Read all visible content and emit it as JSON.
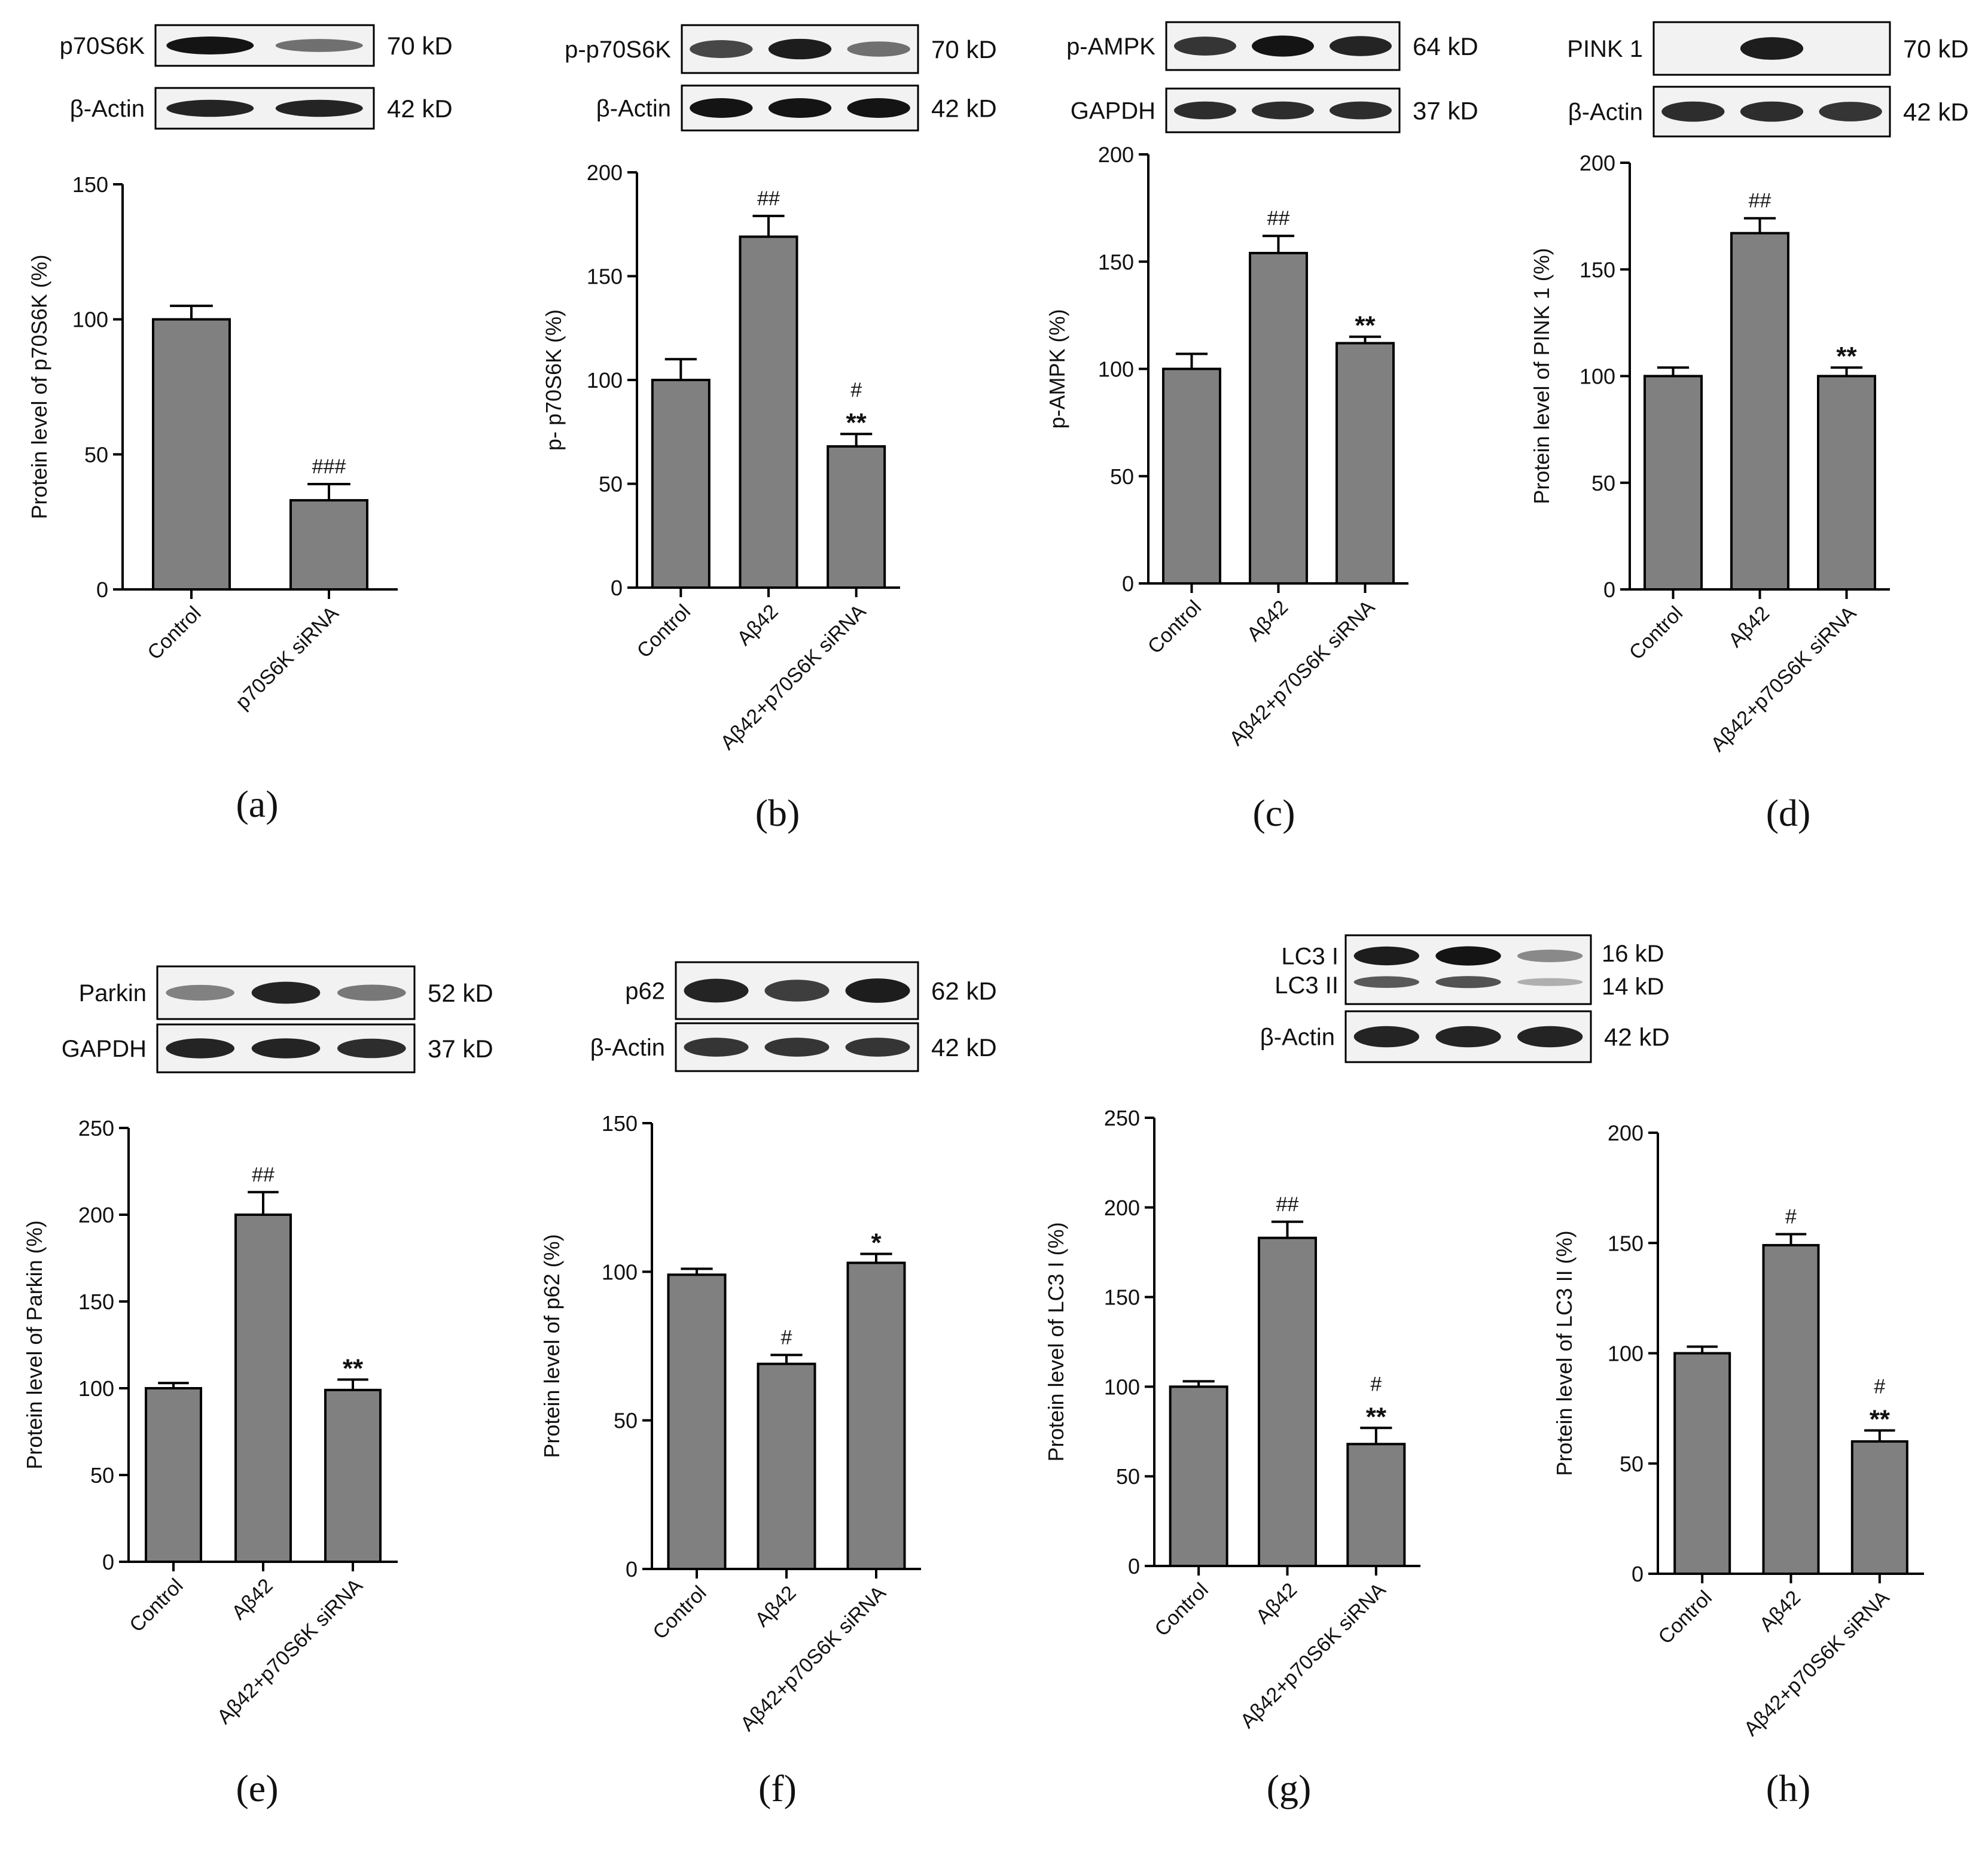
{
  "page": {
    "background": "#ffffff",
    "bar_color": "#808080",
    "axis_color": "#000000",
    "blot_background": "#f2f2f2",
    "band_color": "#141414"
  },
  "chart_data": [
    {
      "panel": "(a)",
      "type": "bar",
      "categories": [
        "Control",
        "p70S6K siRNA"
      ],
      "values": [
        100,
        33
      ],
      "errors": [
        5,
        6
      ],
      "annotations": [
        "",
        "###"
      ],
      "ylabel": "Protein level of p70S6K  (%)",
      "ylim": [
        0,
        150
      ],
      "yticks": [
        0,
        50,
        100,
        150
      ],
      "blots": [
        {
          "label": "p70S6K",
          "kd": "70 kD",
          "lanes": [
            1.0,
            0.45
          ]
        },
        {
          "label": "β-Actin",
          "kd": "42 kD",
          "lanes": [
            0.9,
            0.9
          ]
        }
      ]
    },
    {
      "panel": "(b)",
      "type": "bar",
      "categories": [
        "Control",
        "Aβ42",
        "Aβ42+p70S6K siRNA"
      ],
      "values": [
        100,
        169,
        68
      ],
      "errors": [
        10,
        10,
        6
      ],
      "annotations": [
        "",
        "##",
        "#\n**"
      ],
      "ylabel": "p- p70S6K  (%)",
      "ylim": [
        0,
        200
      ],
      "yticks": [
        0,
        50,
        100,
        150,
        200
      ],
      "blots": [
        {
          "label": "p-p70S6K",
          "kd": "70 kD",
          "lanes": [
            0.7,
            0.95,
            0.45
          ]
        },
        {
          "label": "β-Actin",
          "kd": "42 kD",
          "lanes": [
            1.0,
            1.0,
            1.0
          ]
        }
      ]
    },
    {
      "panel": "(c)",
      "type": "bar",
      "categories": [
        "Control",
        "Aβ42",
        "Aβ42+p70S6K siRNA"
      ],
      "values": [
        100,
        154,
        112
      ],
      "errors": [
        7,
        8,
        3
      ],
      "annotations": [
        "",
        "##",
        "**"
      ],
      "ylabel": "p-AMPK  (%)",
      "ylim": [
        0,
        200
      ],
      "yticks": [
        0,
        50,
        100,
        150,
        200
      ],
      "blots": [
        {
          "label": "p-AMPK",
          "kd": "64 kD",
          "lanes": [
            0.8,
            1.0,
            0.9
          ]
        },
        {
          "label": "GAPDH",
          "kd": "37 kD",
          "lanes": [
            0.85,
            0.85,
            0.85
          ]
        }
      ]
    },
    {
      "panel": "(d)",
      "type": "bar",
      "categories": [
        "Control",
        "Aβ42",
        "Aβ42+p70S6K siRNA"
      ],
      "values": [
        100,
        167,
        100
      ],
      "errors": [
        4,
        7,
        4
      ],
      "annotations": [
        "",
        "##",
        "**"
      ],
      "ylabel": "Protein level of PINK 1 (%)",
      "ylim": [
        0,
        200
      ],
      "yticks": [
        0,
        50,
        100,
        150,
        200
      ],
      "blots": [
        {
          "label": "PINK 1",
          "kd": "70 kD",
          "lanes": [
            0.0,
            0.95,
            0.0
          ]
        },
        {
          "label": "β-Actin",
          "kd": "42 kD",
          "lanes": [
            0.85,
            0.85,
            0.8
          ]
        }
      ]
    },
    {
      "panel": "(e)",
      "type": "bar",
      "categories": [
        "Control",
        "Aβ42",
        "Aβ42+p70S6K siRNA"
      ],
      "values": [
        100,
        200,
        99
      ],
      "errors": [
        3,
        13,
        6
      ],
      "annotations": [
        "",
        "##",
        "**"
      ],
      "ylabel": "Protein level of Parkin  (%)",
      "ylim": [
        0,
        250
      ],
      "yticks": [
        0,
        50,
        100,
        150,
        200,
        250
      ],
      "blots": [
        {
          "label": "Parkin",
          "kd": "52 kD",
          "lanes": [
            0.35,
            0.9,
            0.4
          ]
        },
        {
          "label": "GAPDH",
          "kd": "37 kD",
          "lanes": [
            0.9,
            0.9,
            0.85
          ]
        }
      ]
    },
    {
      "panel": "(f)",
      "type": "bar",
      "categories": [
        "Control",
        "Aβ42",
        "Aβ42+p70S6K siRNA"
      ],
      "values": [
        99,
        69,
        103
      ],
      "errors": [
        2,
        3,
        3
      ],
      "annotations": [
        "",
        "#",
        "*"
      ],
      "ylabel": "Protein level of p62 (%)",
      "ylim": [
        0,
        150
      ],
      "yticks": [
        0,
        50,
        100,
        150
      ],
      "blots": [
        {
          "label": "p62",
          "kd": "62 kD",
          "lanes": [
            0.9,
            0.75,
            0.95
          ]
        },
        {
          "label": "β-Actin",
          "kd": "42 kD",
          "lanes": [
            0.8,
            0.8,
            0.8
          ]
        }
      ]
    },
    {
      "panel": "(g)",
      "type": "bar",
      "categories": [
        "Control",
        "Aβ42",
        "Aβ42+p70S6K siRNA"
      ],
      "values": [
        100,
        183,
        68
      ],
      "errors": [
        3,
        9,
        9
      ],
      "annotations": [
        "",
        "##",
        "#\n**"
      ],
      "ylabel": "Protein level of LC3 I (%)",
      "ylim": [
        0,
        250
      ],
      "yticks": [
        0,
        50,
        100,
        150,
        200,
        250
      ],
      "blots": [
        {
          "label": "LC3 I",
          "kd": "16 kD",
          "lanes": [
            0.95,
            1.0,
            0.3
          ],
          "label2": "LC3 II",
          "kd2": "14 kD",
          "lanes2": [
            0.7,
            0.75,
            0.15
          ]
        },
        {
          "label": "β-Actin",
          "kd": "42 kD",
          "lanes": [
            0.9,
            0.9,
            0.9
          ]
        }
      ]
    },
    {
      "panel": "(h)",
      "type": "bar",
      "categories": [
        "Control",
        "Aβ42",
        "Aβ42+p70S6K siRNA"
      ],
      "values": [
        100,
        149,
        60
      ],
      "errors": [
        3,
        5,
        5
      ],
      "annotations": [
        "",
        "#",
        "#\n**"
      ],
      "ylabel": "Protein level of LC3 II (%)",
      "ylim": [
        0,
        200
      ],
      "yticks": [
        0,
        50,
        100,
        150,
        200
      ],
      "blots": []
    }
  ]
}
